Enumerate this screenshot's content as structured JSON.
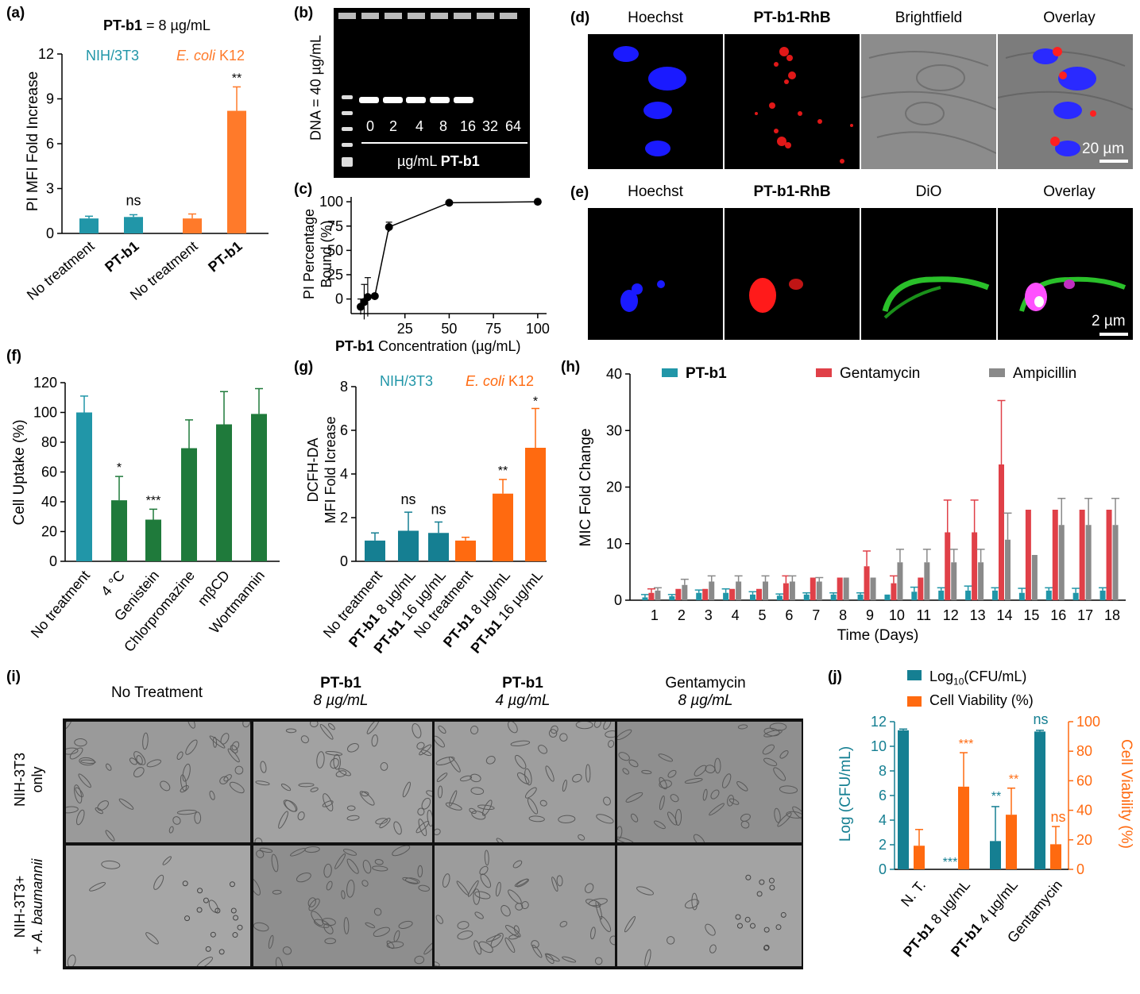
{
  "panels": {
    "a": {
      "label": "(a)",
      "header": "PT-b1",
      "header_suffix": " = 8 µg/mL",
      "legend_left": "NIH/3T3",
      "legend_right_italic": "E. coli",
      "legend_right_suffix": " K12",
      "ylabel": "PI MFI Fold Increase",
      "annotations": [
        "ns",
        "**"
      ]
    },
    "b": {
      "label": "(b)",
      "ylabel": "DNA = 40 µg/mL",
      "lane_labels": [
        "0",
        "2",
        "4",
        "8",
        "16",
        "32",
        "64"
      ],
      "xlabel_prefix": "µg/mL ",
      "xlabel_bold": "PT-b1"
    },
    "c": {
      "label": "(c)",
      "ylabel_line1": "PI Percentage",
      "ylabel_line2": "Bound (%)",
      "xlabel_bold": "PT-b1",
      "xlabel_rest": " Concentration (µg/mL)"
    },
    "d": {
      "label": "(d)",
      "columns": [
        "Hoechst",
        "PT-b1-RhB",
        "Brightfield",
        "Overlay"
      ],
      "scale": "20 µm"
    },
    "e": {
      "label": "(e)",
      "columns": [
        "Hoechst",
        "PT-b1-RhB",
        "DiO",
        "Overlay"
      ],
      "scale": "2 µm"
    },
    "f": {
      "label": "(f)",
      "ylabel": "Cell Uptake (%)",
      "annotations": [
        "*",
        "***"
      ]
    },
    "g": {
      "label": "(g)",
      "legend_left": "NIH/3T3",
      "legend_right_italic": "E. coli",
      "legend_right_suffix": " K12",
      "ylabel_line1": "DCFH-DA",
      "ylabel_line2": "MFI Fold Icrease",
      "annotations": [
        "ns",
        "ns",
        "**",
        "*"
      ]
    },
    "h": {
      "label": "(h)",
      "ylabel": "MIC Fold Change",
      "xlabel": "Time (Days)"
    },
    "i": {
      "label": "(i)",
      "columns": [
        {
          "title": "No Treatment",
          "sub": ""
        },
        {
          "title": "PT-b1",
          "sub": "8 µg/mL"
        },
        {
          "title": "PT-b1",
          "sub": "4 µg/mL"
        },
        {
          "title": "Gentamycin",
          "sub": "8 µg/mL"
        }
      ],
      "row1_line1": "NIH-3T3",
      "row1_line2": "only",
      "row2_line1": "NIH-3T3+",
      "row2_line2_prefix": "+ ",
      "row2_line2_italic": "A. baumannii"
    },
    "j": {
      "label": "(j)",
      "legend_1": "Log",
      "legend_1_sub": "10",
      "legend_1_suffix": "(CFU/mL)",
      "legend_2": "Cell Viability (%)",
      "ylabel_left": "Log (CFU/mL)",
      "ylabel_right": "Cell Viability (%)",
      "annotations": [
        "***",
        "***",
        "**",
        "**",
        "ns",
        "ns"
      ]
    }
  },
  "colors": {
    "teal": "#2196a8",
    "orange": "#ff7a2a",
    "green": "#1f7a3b",
    "red": "#e04048",
    "gray": "#8a8a8a",
    "tealDark": "#157f92",
    "orangeBright": "#ff6a10"
  },
  "chart_data": [
    {
      "id": "a",
      "type": "bar",
      "categories": [
        "No treatment",
        "PT-b1",
        "No treatment",
        "PT-b1"
      ],
      "bold_categories": [
        false,
        true,
        false,
        true
      ],
      "values": [
        1.0,
        1.1,
        1.0,
        8.2
      ],
      "errors": [
        0.15,
        0.15,
        0.3,
        1.6
      ],
      "groups": [
        "NIH/3T3",
        "NIH/3T3",
        "E. coli K12",
        "E. coli K12"
      ],
      "yticks": [
        0,
        3,
        6,
        9,
        12
      ],
      "ylim": [
        0,
        12
      ]
    },
    {
      "id": "c",
      "type": "line",
      "x": [
        0,
        2,
        4,
        8,
        16,
        50,
        100
      ],
      "y": [
        -8,
        -3,
        2,
        3,
        74,
        99,
        100
      ],
      "errors": [
        8,
        18,
        20,
        0,
        5,
        1,
        0
      ],
      "xticks": [
        25,
        50,
        75,
        100
      ],
      "yticks": [
        0,
        25,
        50,
        75,
        100
      ],
      "xlim": [
        0,
        105
      ],
      "ylim": [
        -15,
        105
      ]
    },
    {
      "id": "f",
      "type": "bar",
      "categories": [
        "No treatment",
        "4 °C",
        "Genistein",
        "Chlorpromazine",
        "mβCD",
        "Wortmannin"
      ],
      "values": [
        100,
        41,
        28,
        76,
        92,
        99
      ],
      "errors": [
        11,
        16,
        7,
        19,
        22,
        17
      ],
      "yticks": [
        0,
        20,
        40,
        60,
        80,
        100,
        120
      ],
      "ylim": [
        0,
        120
      ]
    },
    {
      "id": "g",
      "type": "bar",
      "categories": [
        "No treatment",
        "PT-b1 8 µg/mL",
        "PT-b1 16 µg/mL",
        "No treatment",
        "PT-b1 8 µg/mL",
        "PT-b1 16 µg/mL"
      ],
      "values": [
        0.95,
        1.4,
        1.3,
        0.95,
        3.1,
        5.2
      ],
      "errors": [
        0.35,
        0.85,
        0.5,
        0.15,
        0.65,
        1.8
      ],
      "groups": [
        "NIH/3T3",
        "NIH/3T3",
        "NIH/3T3",
        "E. coli K12",
        "E. coli K12",
        "E. coli K12"
      ],
      "yticks": [
        0,
        2,
        4,
        6,
        8
      ],
      "ylim": [
        0,
        8
      ]
    },
    {
      "id": "h",
      "type": "bar",
      "categories": [
        "1",
        "2",
        "3",
        "4",
        "5",
        "6",
        "7",
        "8",
        "9",
        "10",
        "11",
        "12",
        "13",
        "14",
        "15",
        "16",
        "17",
        "18"
      ],
      "series": [
        {
          "name": "PT-b1",
          "values": [
            0.5,
            0.7,
            1.3,
            1.3,
            1,
            0.8,
            1,
            1,
            1,
            1,
            1.5,
            1.7,
            1.7,
            1.7,
            1.3,
            1.7,
            1.3,
            1.7
          ],
          "errors": [
            0.5,
            0.3,
            0.5,
            0.7,
            0.5,
            0.3,
            0.3,
            0.3,
            0.3,
            0,
            0.8,
            0.5,
            0.8,
            0.5,
            0.8,
            0.5,
            0.8,
            0.5
          ]
        },
        {
          "name": "Gentamycin",
          "values": [
            1.3,
            2,
            2,
            2,
            2,
            3,
            4,
            4,
            6,
            3,
            4,
            12,
            12,
            24,
            16,
            16,
            16,
            16
          ],
          "errors": [
            0.7,
            0,
            0,
            0,
            0,
            1.3,
            0,
            0,
            2.7,
            1.3,
            0,
            5.7,
            5.7,
            11.3,
            0,
            0,
            0,
            0
          ]
        },
        {
          "name": "Ampicillin",
          "values": [
            1.7,
            2.7,
            3.3,
            3.3,
            3.3,
            3.3,
            3.3,
            4,
            4,
            6.7,
            6.7,
            6.7,
            6.7,
            10.7,
            8,
            13.3,
            13.3,
            13.3
          ],
          "errors": [
            0.5,
            1,
            1,
            1,
            1,
            1,
            0.7,
            0,
            0,
            2.3,
            2.3,
            2.3,
            2.3,
            4.7,
            0,
            4.7,
            4.7,
            4.7
          ]
        }
      ],
      "yticks": [
        0,
        10,
        20,
        30,
        40
      ],
      "ylim": [
        0,
        40
      ]
    },
    {
      "id": "j",
      "type": "bar",
      "categories": [
        "N. T.",
        "PT-b1 8 µg/mL",
        "PT-b1 4 µg/mL",
        "Gentamycin"
      ],
      "series": [
        {
          "name": "Log10(CFU/mL)",
          "axis": "left",
          "values": [
            11.3,
            0,
            2.3,
            11.2
          ],
          "errors": [
            0.1,
            0,
            2.8,
            0.1
          ]
        },
        {
          "name": "Cell Viability (%)",
          "axis": "right",
          "values": [
            16,
            56,
            37,
            17
          ],
          "errors": [
            11,
            23,
            18,
            12
          ]
        }
      ],
      "yticks_left": [
        0,
        2,
        4,
        6,
        8,
        10,
        12
      ],
      "ylim_left": [
        0,
        12
      ],
      "yticks_right": [
        0,
        20,
        40,
        60,
        80,
        100
      ],
      "ylim_right": [
        0,
        100
      ]
    }
  ]
}
